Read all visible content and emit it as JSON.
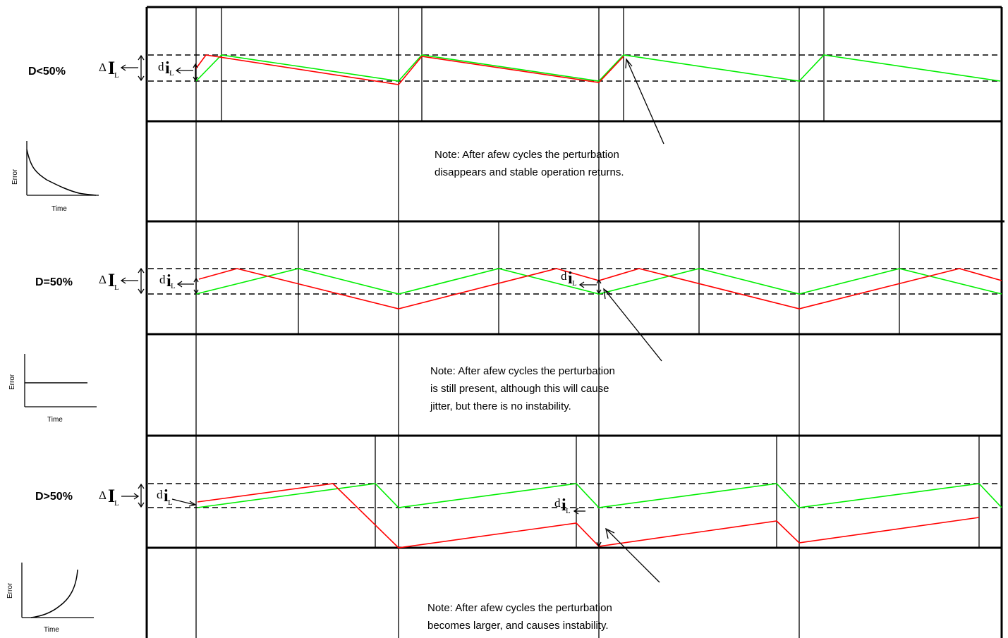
{
  "panels": [
    {
      "label": "D<50%",
      "delta_symbol": "Δ",
      "delta_I": "I",
      "delta_sub": "L",
      "d_symbol": "d",
      "d_i": "i",
      "d_sub": "L",
      "error_axis_label": "Error",
      "time_axis_label": "Time",
      "note_lines": [
        "Note: After afew cycles the perturbation",
        "disappears and stable operation  returns."
      ]
    },
    {
      "label": "D=50%",
      "delta_symbol": "Δ",
      "delta_I": "I",
      "delta_sub": "L",
      "d_symbol": "d",
      "d_i": "i",
      "d_sub": "L",
      "error_axis_label": "Error",
      "time_axis_label": "Time",
      "note_lines": [
        "Note: After afew cycles the perturbation",
        "is still present, although this will cause",
        "jitter, but there is no instability."
      ]
    },
    {
      "label": "D>50%",
      "delta_symbol": "Δ",
      "delta_I": "I",
      "delta_sub": "L",
      "d_symbol": "d",
      "d_i": "i",
      "d_sub": "L",
      "error_axis_label": "Error",
      "time_axis_label": "Time",
      "note_lines": [
        "Note: After afew cycles the perturbation",
        "becomes larger, and causes  instability."
      ]
    }
  ],
  "colors": {
    "perturbed": "#ff0000",
    "steady_state": "#00ee00"
  }
}
